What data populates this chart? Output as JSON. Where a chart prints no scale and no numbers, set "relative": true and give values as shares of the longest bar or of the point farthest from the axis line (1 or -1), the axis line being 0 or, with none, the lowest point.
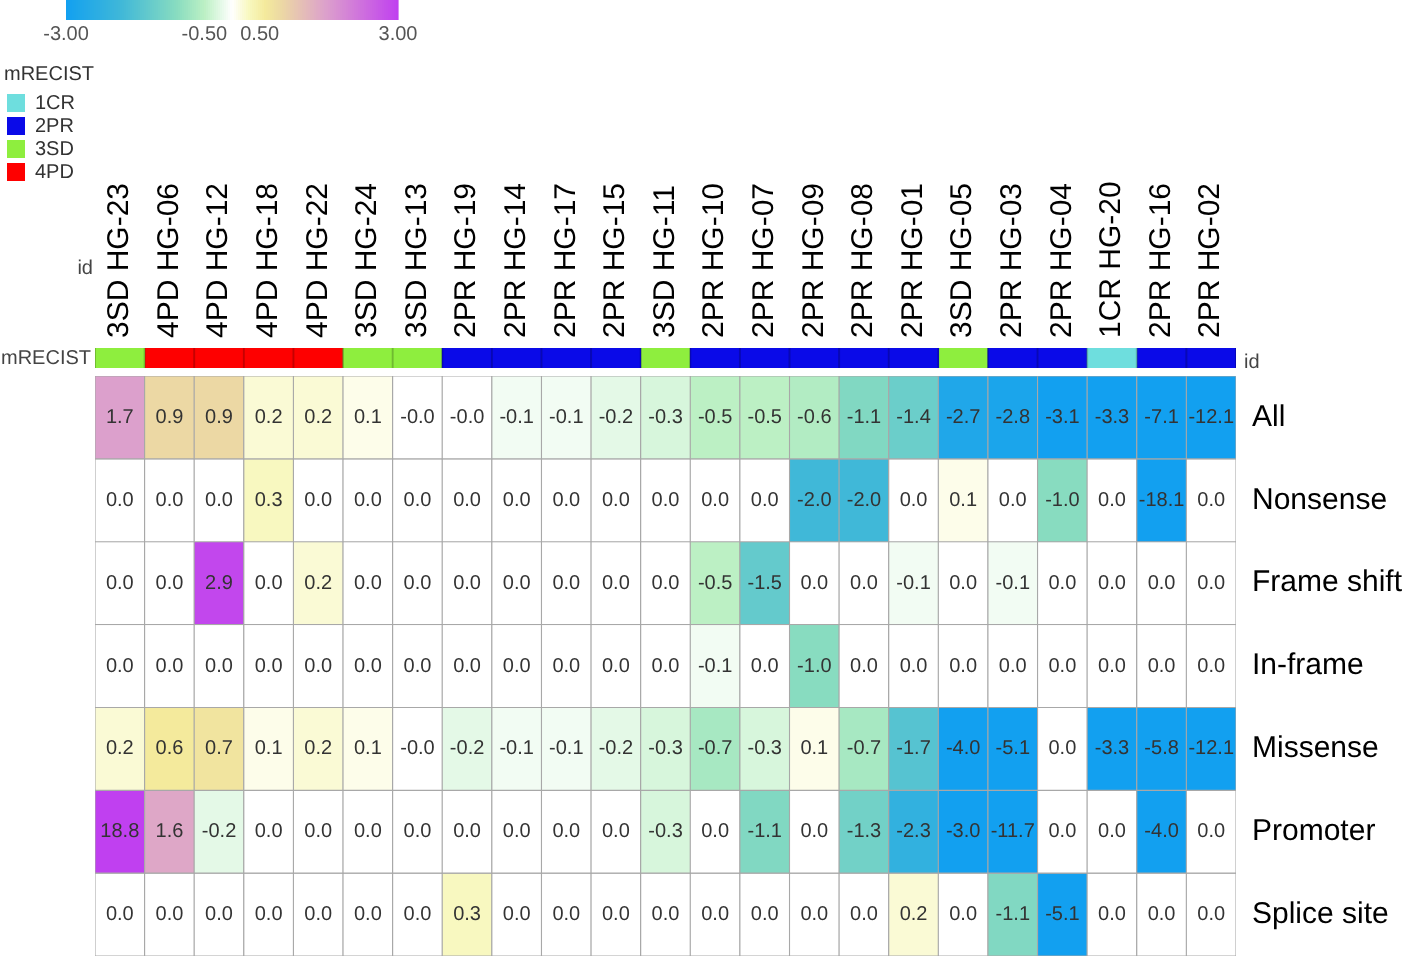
{
  "chart_data": [
    {
      "type": "bar",
      "stacked": true,
      "relative": true,
      "categories": [
        null,
        null,
        null,
        null,
        null,
        null,
        null,
        null,
        null,
        null,
        null,
        null,
        null,
        null,
        null,
        null,
        null,
        null,
        null,
        null,
        null,
        null,
        null
      ],
      "ylabel": "mRECIST",
      "annotations": [
        "id"
      ],
      "legend": "top left",
      "legend_title": "mRECIST",
      "series": [
        {
          "name": "1CR",
          "color": "#6edede",
          "values": [
            null,
            null,
            null,
            null,
            null,
            null,
            null,
            null,
            null,
            null,
            null,
            null,
            null,
            null,
            null,
            null,
            null,
            null,
            null,
            null,
            1,
            null,
            null
          ]
        },
        {
          "name": "2PR",
          "color": "#0a0ae8",
          "values": [
            null,
            null,
            null,
            null,
            null,
            null,
            null,
            1,
            1,
            1,
            1,
            null,
            1,
            1,
            1,
            1,
            1,
            null,
            1,
            1,
            null,
            1,
            1
          ]
        },
        {
          "name": "3SD",
          "color": "#8eee3e",
          "values": [
            1,
            null,
            null,
            null,
            null,
            1,
            1,
            null,
            null,
            null,
            null,
            1,
            null,
            null,
            null,
            null,
            null,
            1,
            null,
            null,
            null,
            null,
            null
          ]
        },
        {
          "name": "4PD",
          "color": "#fe0000",
          "values": [
            null,
            1,
            1,
            1,
            1,
            null,
            null,
            null,
            null,
            null,
            null,
            null,
            null,
            null,
            null,
            null,
            null,
            null,
            null,
            null,
            null,
            null,
            null
          ]
        }
      ]
    },
    {
      "type": "heatmap",
      "xlabel": "id",
      "categories": [
        "3SD HG-23",
        "4PD HG-06",
        "4PD HG-12",
        "4PD HG-18",
        "4PD HG-22",
        "3SD HG-24",
        "3SD HG-13",
        "2PR HG-19",
        "2PR HG-14",
        "2PR HG-17",
        "2PR HG-15",
        "3SD HG-11",
        "2PR HG-10",
        "2PR HG-07",
        "2PR HG-09",
        "2PR HG-08",
        "2PR HG-01",
        "3SD HG-05",
        "2PR HG-03",
        "2PR HG-04",
        "1CR HG-20",
        "2PR HG-16",
        "2PR HG-02"
      ],
      "y_categories": [
        "All",
        "Nonsense",
        "Frame shift",
        "In-frame",
        "Missense",
        "Promoter",
        "Splice site"
      ],
      "cells": [
        [
          1.7,
          0.9,
          0.9,
          0.2,
          0.2,
          0.1,
          -0.0,
          -0.0,
          -0.1,
          -0.1,
          -0.2,
          -0.3,
          -0.5,
          -0.5,
          -0.6,
          -1.1,
          -1.4,
          -2.7,
          -2.8,
          -3.1,
          -3.3,
          -7.1,
          -12.1
        ],
        [
          0.0,
          0.0,
          0.0,
          0.3,
          0.0,
          0.0,
          0.0,
          0.0,
          0.0,
          0.0,
          0.0,
          0.0,
          0.0,
          0.0,
          -2.0,
          -2.0,
          0.0,
          0.1,
          0.0,
          -1.0,
          0.0,
          -18.1,
          0.0
        ],
        [
          0.0,
          0.0,
          2.9,
          0.0,
          0.2,
          0.0,
          0.0,
          0.0,
          0.0,
          0.0,
          0.0,
          0.0,
          -0.5,
          -1.5,
          0.0,
          0.0,
          -0.1,
          0.0,
          -0.1,
          0.0,
          0.0,
          0.0,
          0.0
        ],
        [
          0.0,
          0.0,
          0.0,
          0.0,
          0.0,
          0.0,
          0.0,
          0.0,
          0.0,
          0.0,
          0.0,
          0.0,
          -0.1,
          0.0,
          -1.0,
          0.0,
          0.0,
          0.0,
          0.0,
          0.0,
          0.0,
          0.0,
          0.0
        ],
        [
          0.2,
          0.6,
          0.7,
          0.1,
          0.2,
          0.1,
          -0.0,
          -0.2,
          -0.1,
          -0.1,
          -0.2,
          -0.3,
          -0.7,
          -0.3,
          0.1,
          -0.7,
          -1.7,
          -4.0,
          -5.1,
          0.0,
          -3.3,
          -5.8,
          -12.1
        ],
        [
          18.8,
          1.6,
          -0.2,
          0.0,
          0.0,
          0.0,
          0.0,
          0.0,
          0.0,
          0.0,
          0.0,
          -0.3,
          0.0,
          -1.1,
          0.0,
          -1.3,
          -2.3,
          -3.0,
          -11.7,
          0.0,
          0.0,
          -4.0,
          0.0
        ],
        [
          0.0,
          0.0,
          0.0,
          0.0,
          0.0,
          0.0,
          0.0,
          0.3,
          0.0,
          0.0,
          0.0,
          0.0,
          0.0,
          0.0,
          0.0,
          0.0,
          0.2,
          0.0,
          -1.1,
          -5.1,
          0.0,
          0.0,
          0.0
        ]
      ],
      "cell_labels": [
        [
          "1.7",
          "0.9",
          "0.9",
          "0.2",
          "0.2",
          "0.1",
          "-0.0",
          "-0.0",
          "-0.1",
          "-0.1",
          "-0.2",
          "-0.3",
          "-0.5",
          "-0.5",
          "-0.6",
          "-1.1",
          "-1.4",
          "-2.7",
          "-2.8",
          "-3.1",
          "-3.3",
          "-7.1",
          "-12.1"
        ],
        [
          "0.0",
          "0.0",
          "0.0",
          "0.3",
          "0.0",
          "0.0",
          "0.0",
          "0.0",
          "0.0",
          "0.0",
          "0.0",
          "0.0",
          "0.0",
          "0.0",
          "-2.0",
          "-2.0",
          "0.0",
          "0.1",
          "0.0",
          "-1.0",
          "0.0",
          "-18.1",
          "0.0"
        ],
        [
          "0.0",
          "0.0",
          "2.9",
          "0.0",
          "0.2",
          "0.0",
          "0.0",
          "0.0",
          "0.0",
          "0.0",
          "0.0",
          "0.0",
          "-0.5",
          "-1.5",
          "0.0",
          "0.0",
          "-0.1",
          "0.0",
          "-0.1",
          "0.0",
          "0.0",
          "0.0",
          "0.0"
        ],
        [
          "0.0",
          "0.0",
          "0.0",
          "0.0",
          "0.0",
          "0.0",
          "0.0",
          "0.0",
          "0.0",
          "0.0",
          "0.0",
          "0.0",
          "-0.1",
          "0.0",
          "-1.0",
          "0.0",
          "0.0",
          "0.0",
          "0.0",
          "0.0",
          "0.0",
          "0.0",
          "0.0"
        ],
        [
          "0.2",
          "0.6",
          "0.7",
          "0.1",
          "0.2",
          "0.1",
          "-0.0",
          "-0.2",
          "-0.1",
          "-0.1",
          "-0.2",
          "-0.3",
          "-0.7",
          "-0.3",
          "0.1",
          "-0.7",
          "-1.7",
          "-4.0",
          "-5.1",
          "0.0",
          "-3.3",
          "-5.8",
          "-12.1"
        ],
        [
          "18.8",
          "1.6",
          "-0.2",
          "0.0",
          "0.0",
          "0.0",
          "0.0",
          "0.0",
          "0.0",
          "0.0",
          "0.0",
          "-0.3",
          "0.0",
          "-1.1",
          "0.0",
          "-1.3",
          "-2.3",
          "-3.0",
          "-11.7",
          "0.0",
          "0.0",
          "-4.0",
          "0.0"
        ],
        [
          "0.0",
          "0.0",
          "0.0",
          "0.0",
          "0.0",
          "0.0",
          "0.0",
          "0.3",
          "0.0",
          "0.0",
          "0.0",
          "0.0",
          "0.0",
          "0.0",
          "0.0",
          "0.0",
          "0.2",
          "0.0",
          "-1.1",
          "-5.1",
          "0.0",
          "0.0",
          "0.0"
        ]
      ],
      "clim": [
        -3,
        3
      ],
      "cticks": [
        {
          "value": -3,
          "label": "-3.00"
        },
        {
          "value": -0.5,
          "label": "-0.50"
        },
        {
          "value": 0.5,
          "label": "0.50"
        },
        {
          "value": 3,
          "label": "3.00"
        }
      ]
    }
  ]
}
